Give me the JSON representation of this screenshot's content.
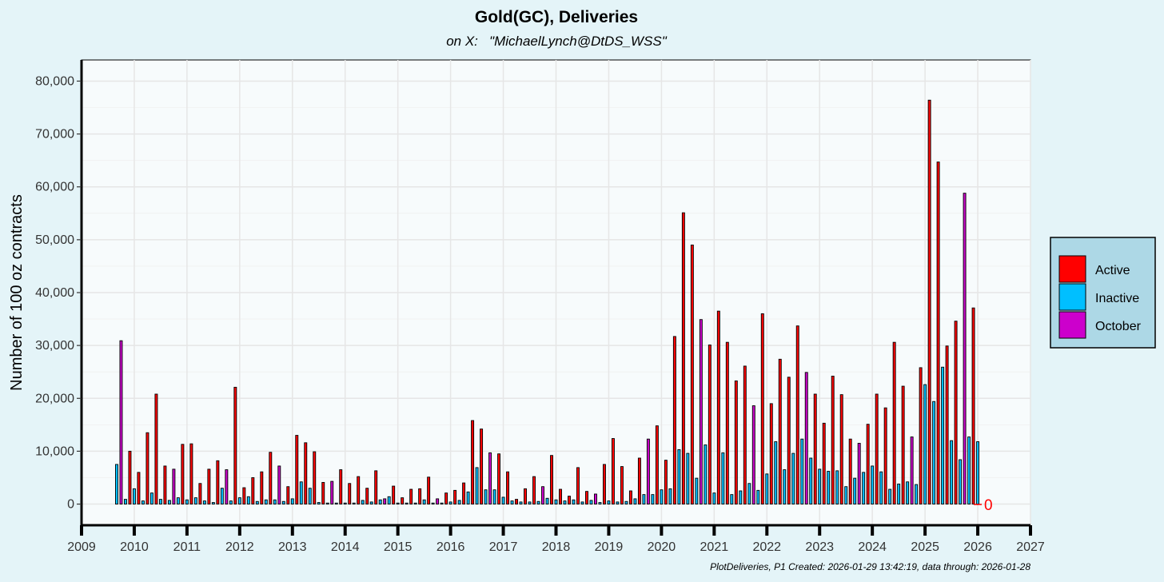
{
  "chart_data": {
    "type": "bar",
    "title": "Gold(GC), Deliveries",
    "subtitle": "on X:   \"MichaelLynch@DtDS_WSS\"",
    "ylabel": "Number of 100 oz contracts",
    "xlabel": "",
    "ylim": [
      -4000,
      84000
    ],
    "xlim": [
      2009,
      2027
    ],
    "yticks": [
      0,
      10000,
      20000,
      30000,
      40000,
      50000,
      60000,
      70000,
      80000
    ],
    "ytick_labels": [
      "0",
      "10,000",
      "20,000",
      "30,000",
      "40,000",
      "50,000",
      "60,000",
      "70,000",
      "80,000"
    ],
    "xticks": [
      2009,
      2010,
      2011,
      2012,
      2013,
      2014,
      2015,
      2016,
      2017,
      2018,
      2019,
      2020,
      2021,
      2022,
      2023,
      2024,
      2025,
      2026,
      2027
    ],
    "xtick_labels": [
      "2009",
      "2010",
      "2011",
      "2012",
      "2013",
      "2014",
      "2015",
      "2016",
      "2017",
      "2018",
      "2019",
      "2020",
      "2021",
      "2022",
      "2023",
      "2024",
      "2025",
      "2026",
      "2027"
    ],
    "grid": true,
    "legend_position": "right",
    "colors": {
      "Active": "#ff0000",
      "Inactive": "#00bfff",
      "October": "#cc00cc"
    },
    "legend": [
      "Active",
      "Inactive",
      "October"
    ],
    "zero_label": "0",
    "caption": "PlotDeliveries, P1 Created: 2026-01-29 13:42:19, data through: 2026-01-28",
    "series": [
      {
        "name": "Active",
        "points": [
          [
            "2009-12",
            10000
          ],
          [
            "2010-02",
            6000
          ],
          [
            "2010-04",
            13500
          ],
          [
            "2010-06",
            20800
          ],
          [
            "2010-08",
            7200
          ],
          [
            "2010-12",
            11300
          ],
          [
            "2011-02",
            11400
          ],
          [
            "2011-04",
            3900
          ],
          [
            "2011-06",
            6600
          ],
          [
            "2011-08",
            8200
          ],
          [
            "2011-12",
            22100
          ],
          [
            "2012-02",
            3100
          ],
          [
            "2012-04",
            5000
          ],
          [
            "2012-06",
            6100
          ],
          [
            "2012-08",
            9800
          ],
          [
            "2012-12",
            3300
          ],
          [
            "2013-02",
            13000
          ],
          [
            "2013-04",
            11600
          ],
          [
            "2013-06",
            9900
          ],
          [
            "2013-08",
            4100
          ],
          [
            "2013-12",
            6500
          ],
          [
            "2014-02",
            3900
          ],
          [
            "2014-04",
            5200
          ],
          [
            "2014-06",
            3000
          ],
          [
            "2014-08",
            6300
          ],
          [
            "2014-12",
            3400
          ],
          [
            "2015-02",
            1200
          ],
          [
            "2015-04",
            2800
          ],
          [
            "2015-06",
            2900
          ],
          [
            "2015-08",
            5100
          ],
          [
            "2015-12",
            2100
          ],
          [
            "2016-02",
            2600
          ],
          [
            "2016-04",
            4000
          ],
          [
            "2016-06",
            15800
          ],
          [
            "2016-08",
            14200
          ],
          [
            "2016-12",
            9500
          ],
          [
            "2017-02",
            6100
          ],
          [
            "2017-04",
            900
          ],
          [
            "2017-06",
            2900
          ],
          [
            "2017-08",
            5200
          ],
          [
            "2017-12",
            9200
          ],
          [
            "2018-02",
            2800
          ],
          [
            "2018-04",
            1500
          ],
          [
            "2018-06",
            6900
          ],
          [
            "2018-08",
            2400
          ],
          [
            "2018-12",
            7500
          ],
          [
            "2019-02",
            12400
          ],
          [
            "2019-04",
            7100
          ],
          [
            "2019-06",
            2500
          ],
          [
            "2019-08",
            8700
          ],
          [
            "2019-12",
            14800
          ],
          [
            "2020-02",
            8300
          ],
          [
            "2020-04",
            31700
          ],
          [
            "2020-06",
            55100
          ],
          [
            "2020-08",
            49000
          ],
          [
            "2020-12",
            30100
          ],
          [
            "2021-02",
            36500
          ],
          [
            "2021-04",
            30600
          ],
          [
            "2021-06",
            23300
          ],
          [
            "2021-08",
            26100
          ],
          [
            "2021-12",
            36000
          ],
          [
            "2022-02",
            19000
          ],
          [
            "2022-04",
            27400
          ],
          [
            "2022-06",
            24000
          ],
          [
            "2022-08",
            33700
          ],
          [
            "2022-12",
            20800
          ],
          [
            "2023-02",
            15300
          ],
          [
            "2023-04",
            24200
          ],
          [
            "2023-06",
            20700
          ],
          [
            "2023-08",
            12300
          ],
          [
            "2023-12",
            15100
          ],
          [
            "2024-02",
            20800
          ],
          [
            "2024-04",
            18200
          ],
          [
            "2024-06",
            30600
          ],
          [
            "2024-08",
            22300
          ],
          [
            "2024-12",
            25800
          ],
          [
            "2025-02",
            76400
          ],
          [
            "2025-04",
            64700
          ],
          [
            "2025-06",
            29900
          ],
          [
            "2025-08",
            34600
          ],
          [
            "2025-12",
            37100
          ]
        ]
      },
      {
        "name": "Inactive",
        "points": [
          [
            "2009-09",
            7500
          ],
          [
            "2009-11",
            900
          ],
          [
            "2010-01",
            2900
          ],
          [
            "2010-03",
            600
          ],
          [
            "2010-05",
            2100
          ],
          [
            "2010-07",
            900
          ],
          [
            "2010-09",
            700
          ],
          [
            "2010-11",
            1200
          ],
          [
            "2011-01",
            800
          ],
          [
            "2011-03",
            1200
          ],
          [
            "2011-05",
            600
          ],
          [
            "2011-07",
            300
          ],
          [
            "2011-09",
            3000
          ],
          [
            "2011-11",
            600
          ],
          [
            "2012-01",
            1200
          ],
          [
            "2012-03",
            1400
          ],
          [
            "2012-05",
            500
          ],
          [
            "2012-07",
            800
          ],
          [
            "2012-09",
            800
          ],
          [
            "2012-11",
            500
          ],
          [
            "2013-01",
            1000
          ],
          [
            "2013-03",
            4200
          ],
          [
            "2013-05",
            3000
          ],
          [
            "2013-07",
            300
          ],
          [
            "2013-09",
            200
          ],
          [
            "2013-11",
            200
          ],
          [
            "2014-01",
            200
          ],
          [
            "2014-03",
            200
          ],
          [
            "2014-05",
            700
          ],
          [
            "2014-07",
            400
          ],
          [
            "2014-09",
            800
          ],
          [
            "2014-11",
            1400
          ],
          [
            "2015-01",
            200
          ],
          [
            "2015-03",
            200
          ],
          [
            "2015-05",
            200
          ],
          [
            "2015-07",
            800
          ],
          [
            "2015-09",
            200
          ],
          [
            "2015-11",
            200
          ],
          [
            "2016-01",
            400
          ],
          [
            "2016-03",
            700
          ],
          [
            "2016-05",
            2300
          ],
          [
            "2016-07",
            6900
          ],
          [
            "2016-09",
            2700
          ],
          [
            "2016-11",
            2700
          ],
          [
            "2017-01",
            1300
          ],
          [
            "2017-03",
            600
          ],
          [
            "2017-05",
            400
          ],
          [
            "2017-07",
            400
          ],
          [
            "2017-09",
            500
          ],
          [
            "2017-11",
            1100
          ],
          [
            "2018-01",
            800
          ],
          [
            "2018-03",
            600
          ],
          [
            "2018-05",
            800
          ],
          [
            "2018-07",
            400
          ],
          [
            "2018-09",
            700
          ],
          [
            "2018-11",
            300
          ],
          [
            "2019-01",
            600
          ],
          [
            "2019-03",
            400
          ],
          [
            "2019-05",
            500
          ],
          [
            "2019-07",
            1000
          ],
          [
            "2019-09",
            1800
          ],
          [
            "2019-11",
            1800
          ],
          [
            "2020-01",
            2700
          ],
          [
            "2020-03",
            2900
          ],
          [
            "2020-05",
            10300
          ],
          [
            "2020-07",
            9600
          ],
          [
            "2020-09",
            4900
          ],
          [
            "2020-11",
            11200
          ],
          [
            "2021-01",
            2100
          ],
          [
            "2021-03",
            9700
          ],
          [
            "2021-05",
            1800
          ],
          [
            "2021-07",
            2500
          ],
          [
            "2021-09",
            3900
          ],
          [
            "2021-11",
            2600
          ],
          [
            "2022-01",
            5700
          ],
          [
            "2022-03",
            11800
          ],
          [
            "2022-05",
            6500
          ],
          [
            "2022-07",
            9600
          ],
          [
            "2022-09",
            12300
          ],
          [
            "2022-11",
            8700
          ],
          [
            "2023-01",
            6600
          ],
          [
            "2023-03",
            6200
          ],
          [
            "2023-05",
            6300
          ],
          [
            "2023-07",
            3300
          ],
          [
            "2023-09",
            4900
          ],
          [
            "2023-11",
            6000
          ],
          [
            "2024-01",
            7200
          ],
          [
            "2024-03",
            6100
          ],
          [
            "2024-05",
            2800
          ],
          [
            "2024-07",
            3800
          ],
          [
            "2024-09",
            4200
          ],
          [
            "2024-11",
            3700
          ],
          [
            "2025-01",
            22600
          ],
          [
            "2025-03",
            19400
          ],
          [
            "2025-05",
            25900
          ],
          [
            "2025-07",
            12000
          ],
          [
            "2025-09",
            8400
          ],
          [
            "2025-11",
            12700
          ],
          [
            "2026-01",
            11800
          ]
        ]
      },
      {
        "name": "October",
        "points": [
          [
            "2009-10",
            30900
          ],
          [
            "2010-10",
            6600
          ],
          [
            "2011-10",
            6500
          ],
          [
            "2012-10",
            7200
          ],
          [
            "2013-10",
            4300
          ],
          [
            "2014-10",
            1000
          ],
          [
            "2015-10",
            1000
          ],
          [
            "2016-10",
            9700
          ],
          [
            "2017-10",
            3300
          ],
          [
            "2018-10",
            1900
          ],
          [
            "2019-10",
            12300
          ],
          [
            "2020-10",
            34900
          ],
          [
            "2021-10",
            18600
          ],
          [
            "2022-10",
            24900
          ],
          [
            "2023-10",
            11500
          ],
          [
            "2024-10",
            12700
          ],
          [
            "2025-10",
            58800
          ]
        ]
      }
    ]
  }
}
